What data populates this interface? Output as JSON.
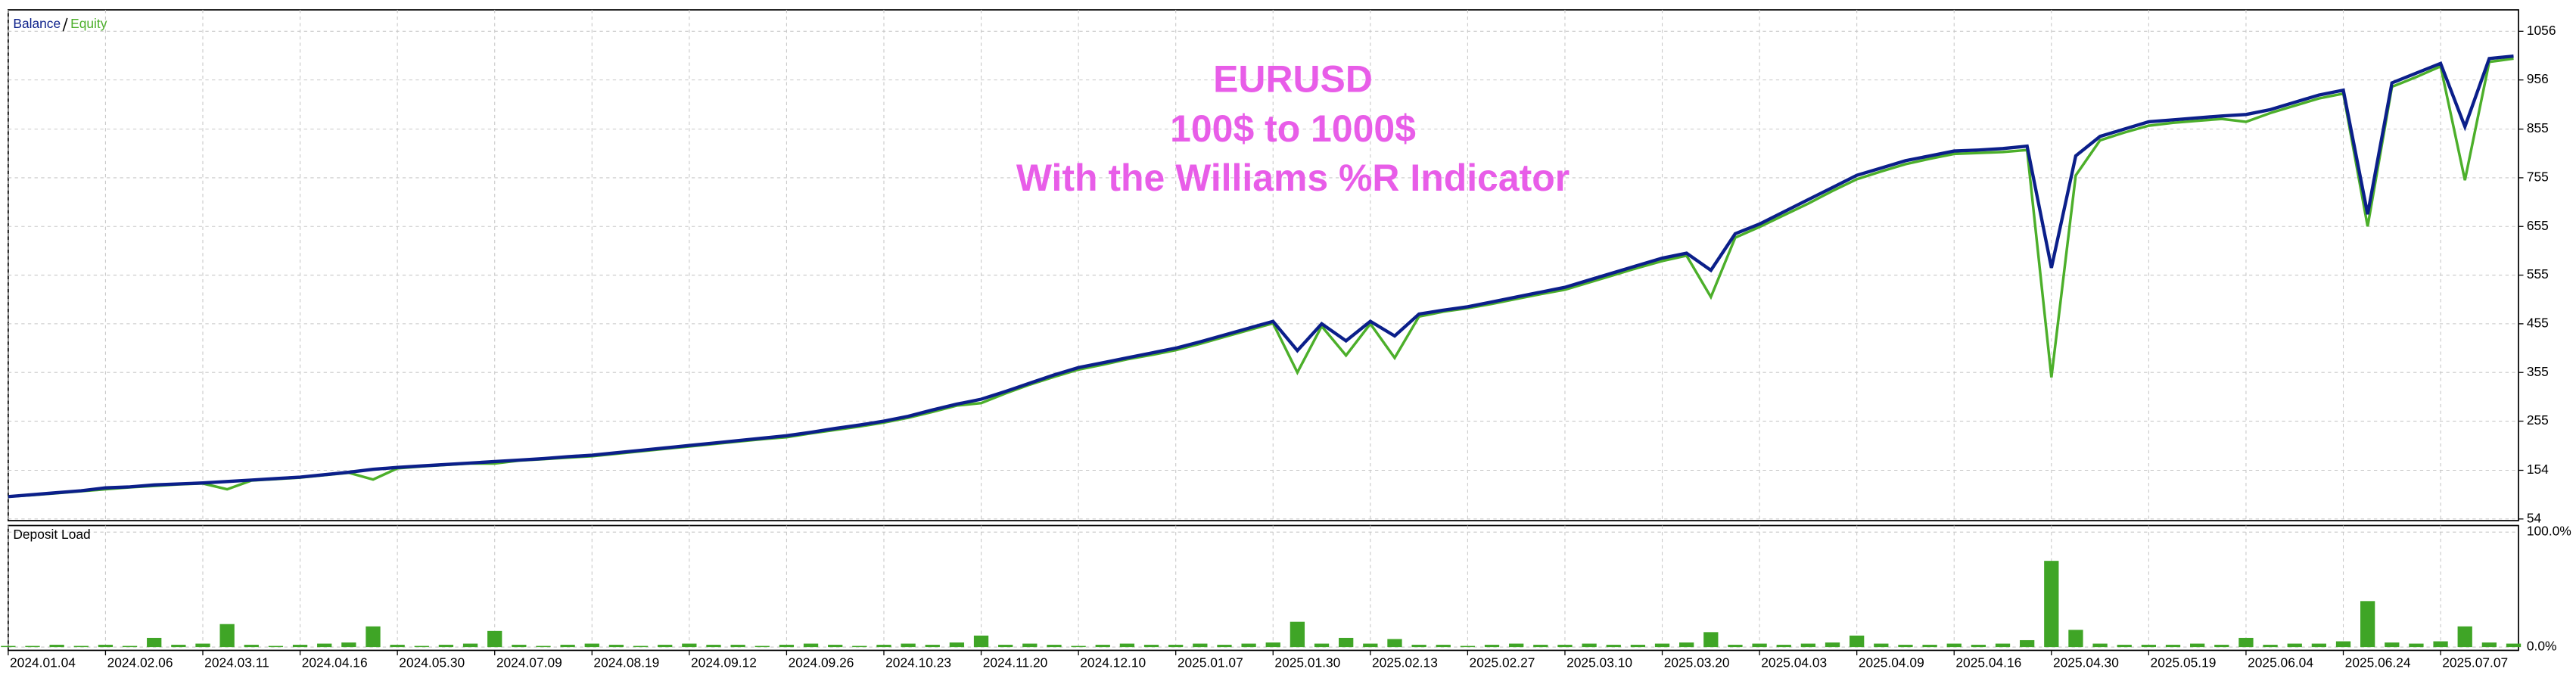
{
  "chart_data": [
    {
      "type": "line",
      "annotations": [
        "EURUSD",
        "100$ to 1000$",
        "With the Williams %R Indicator"
      ],
      "annotation_color": "#e85de8",
      "categories": [
        "2024.01.04",
        null,
        null,
        null,
        "2024.02.06",
        null,
        null,
        null,
        "2024.03.11",
        null,
        null,
        null,
        "2024.04.16",
        null,
        null,
        null,
        "2024.05.30",
        null,
        null,
        null,
        "2024.07.09",
        null,
        null,
        null,
        "2024.08.19",
        null,
        null,
        null,
        "2024.09.12",
        null,
        null,
        null,
        "2024.09.26",
        null,
        null,
        null,
        "2024.10.23",
        null,
        null,
        null,
        "2024.11.20",
        null,
        null,
        null,
        "2024.12.10",
        null,
        null,
        null,
        "2025.01.07",
        null,
        null,
        null,
        "2025.01.30",
        null,
        null,
        null,
        "2025.02.13",
        null,
        null,
        null,
        "2025.02.27",
        null,
        null,
        null,
        "2025.03.10",
        null,
        null,
        null,
        "2025.03.20",
        null,
        null,
        null,
        "2025.04.03",
        null,
        null,
        null,
        "2025.04.09",
        null,
        null,
        null,
        "2025.04.16",
        null,
        null,
        null,
        "2025.04.30",
        null,
        null,
        null,
        "2025.05.19",
        null,
        null,
        null,
        "2025.06.04",
        null,
        null,
        null,
        "2025.06.24",
        null,
        null,
        null,
        "2025.07.07",
        null,
        null,
        null
      ],
      "series": [
        {
          "name": "Balance",
          "color": "#0b1f8a",
          "values": [
            100,
            104,
            108,
            112,
            118,
            120,
            124,
            126,
            128,
            131,
            134,
            137,
            140,
            145,
            150,
            156,
            160,
            163,
            166,
            169,
            172,
            175,
            178,
            182,
            185,
            190,
            195,
            200,
            205,
            210,
            215,
            220,
            225,
            232,
            240,
            247,
            255,
            265,
            278,
            290,
            300,
            316,
            333,
            350,
            365,
            375,
            385,
            395,
            405,
            418,
            432,
            446,
            460,
            400,
            455,
            420,
            460,
            430,
            475,
            483,
            490,
            500,
            510,
            520,
            530,
            545,
            560,
            575,
            590,
            600,
            565,
            640,
            660,
            685,
            710,
            735,
            760,
            775,
            790,
            800,
            810,
            812,
            815,
            820,
            570,
            800,
            840,
            855,
            870,
            874,
            878,
            882,
            885,
            895,
            910,
            925,
            935,
            680,
            950,
            970,
            990,
            860,
            1000,
            1005
          ]
        },
        {
          "name": "Equity",
          "color": "#4caf2a",
          "values": [
            100,
            103,
            107,
            111,
            115,
            119,
            122,
            125,
            127,
            115,
            133,
            136,
            139,
            144,
            149,
            135,
            158,
            162,
            165,
            168,
            168,
            174,
            177,
            180,
            183,
            188,
            193,
            198,
            203,
            208,
            213,
            218,
            222,
            230,
            237,
            244,
            252,
            262,
            274,
            287,
            292,
            312,
            330,
            346,
            361,
            371,
            382,
            391,
            401,
            414,
            428,
            442,
            456,
            355,
            450,
            390,
            455,
            385,
            470,
            480,
            487,
            496,
            506,
            516,
            525,
            540,
            555,
            570,
            584,
            595,
            510,
            632,
            654,
            678,
            702,
            728,
            752,
            768,
            783,
            794,
            804,
            806,
            808,
            812,
            345,
            760,
            832,
            848,
            862,
            868,
            872,
            876,
            870,
            888,
            903,
            918,
            928,
            655,
            942,
            962,
            984,
            750,
            993,
            1000
          ]
        }
      ],
      "ylim": [
        54,
        1100
      ],
      "yticks": [
        54,
        154,
        255,
        355,
        455,
        555,
        655,
        755,
        855,
        956,
        1056
      ],
      "grid": true
    },
    {
      "type": "bar",
      "title": "Deposit Load",
      "color": "#3fa526",
      "values": [
        1,
        1,
        2,
        1,
        2,
        1,
        8,
        2,
        3,
        20,
        2,
        1,
        2,
        3,
        4,
        18,
        2,
        1,
        2,
        3,
        14,
        2,
        1,
        2,
        3,
        2,
        1,
        2,
        3,
        2,
        2,
        1,
        2,
        3,
        2,
        1,
        2,
        3,
        2,
        4,
        10,
        2,
        3,
        2,
        1,
        2,
        3,
        2,
        2,
        3,
        2,
        3,
        4,
        22,
        3,
        8,
        3,
        7,
        2,
        2,
        1,
        2,
        3,
        2,
        2,
        3,
        2,
        2,
        3,
        4,
        13,
        2,
        3,
        2,
        3,
        4,
        10,
        3,
        2,
        2,
        3,
        2,
        3,
        6,
        75,
        15,
        3,
        2,
        2,
        2,
        3,
        2,
        8,
        2,
        3,
        3,
        5,
        40,
        4,
        3,
        5,
        18,
        4,
        3
      ],
      "ylim": [
        0,
        100
      ],
      "yticks": [
        {
          "value": 100,
          "label": "100.0%"
        },
        {
          "value": 0,
          "label": "0.0%"
        }
      ],
      "grid": true
    }
  ]
}
